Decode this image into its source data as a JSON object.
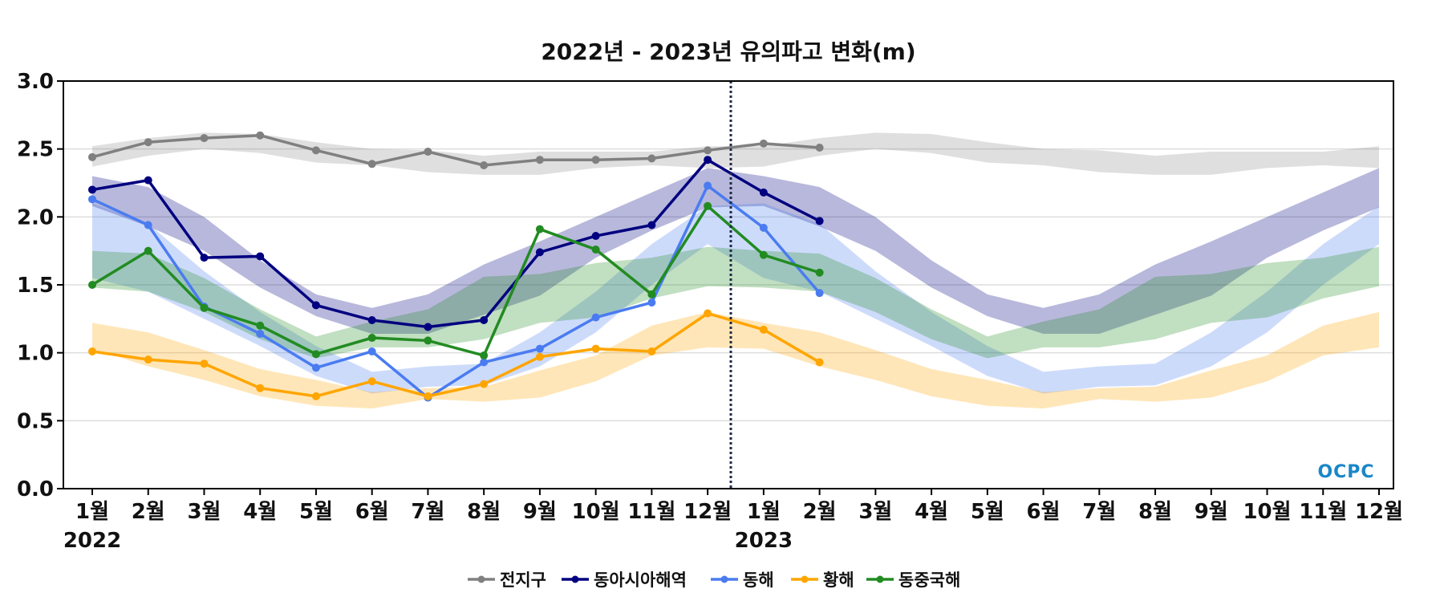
{
  "chart_data": {
    "type": "line",
    "title": "2022년 - 2023년 유의파고 변화(m)",
    "ylim": [
      0,
      3.0
    ],
    "yticks": [
      "0.0",
      "0.5",
      "1.0",
      "1.5",
      "2.0",
      "2.5",
      "3.0"
    ],
    "xtick_labels": [
      "1월",
      "2월",
      "3월",
      "4월",
      "5월",
      "6월",
      "7월",
      "8월",
      "9월",
      "10월",
      "11월",
      "12월",
      "1월",
      "2월",
      "3월",
      "4월",
      "5월",
      "6월",
      "7월",
      "8월",
      "9월",
      "10월",
      "11월",
      "12월"
    ],
    "year_labels": [
      "2022",
      "2023"
    ],
    "grid": true,
    "legend_position": "bottom",
    "divider": "between 2022-12 and 2023-01 (dotted)",
    "logo": "OCPC",
    "series": [
      {
        "name": "전지구",
        "color": "#808080",
        "values": [
          2.44,
          2.55,
          2.58,
          2.6,
          2.49,
          2.39,
          2.48,
          2.38,
          2.42,
          2.42,
          2.43,
          2.49,
          2.54,
          2.51
        ],
        "band": [
          [
            2.37,
            2.52
          ],
          [
            2.45,
            2.58
          ],
          [
            2.5,
            2.62
          ],
          [
            2.47,
            2.61
          ],
          [
            2.4,
            2.55
          ],
          [
            2.38,
            2.5
          ],
          [
            2.33,
            2.49
          ],
          [
            2.31,
            2.45
          ],
          [
            2.31,
            2.48
          ],
          [
            2.36,
            2.48
          ],
          [
            2.38,
            2.48
          ],
          [
            2.36,
            2.52
          ]
        ]
      },
      {
        "name": "동아시아해역",
        "color": "#000080",
        "values": [
          2.2,
          2.27,
          1.7,
          1.71,
          1.35,
          1.24,
          1.19,
          1.24,
          1.74,
          1.86,
          1.94,
          2.42,
          2.18,
          1.97
        ],
        "band": [
          [
            2.08,
            2.3
          ],
          [
            1.93,
            2.22
          ],
          [
            1.75,
            2.0
          ],
          [
            1.48,
            1.68
          ],
          [
            1.27,
            1.43
          ],
          [
            1.14,
            1.33
          ],
          [
            1.14,
            1.43
          ],
          [
            1.28,
            1.65
          ],
          [
            1.42,
            1.82
          ],
          [
            1.7,
            2.0
          ],
          [
            1.9,
            2.18
          ],
          [
            2.07,
            2.36
          ]
        ]
      },
      {
        "name": "동해",
        "color": "#4a7cf0",
        "values": [
          2.13,
          1.94,
          1.34,
          1.14,
          0.89,
          1.01,
          0.67,
          0.93,
          1.03,
          1.26,
          1.37,
          2.23,
          1.92,
          1.44
        ],
        "band": [
          [
            1.55,
            2.1
          ],
          [
            1.45,
            1.95
          ],
          [
            1.25,
            1.6
          ],
          [
            1.05,
            1.3
          ],
          [
            0.83,
            1.05
          ],
          [
            0.7,
            0.86
          ],
          [
            0.75,
            0.9
          ],
          [
            0.76,
            0.92
          ],
          [
            0.9,
            1.15
          ],
          [
            1.15,
            1.45
          ],
          [
            1.5,
            1.8
          ],
          [
            1.8,
            2.08
          ]
        ]
      },
      {
        "name": "황해",
        "color": "#ffa500",
        "values": [
          1.01,
          0.95,
          0.92,
          0.74,
          0.68,
          0.79,
          0.68,
          0.77,
          0.97,
          1.03,
          1.01,
          1.29,
          1.17,
          0.93
        ],
        "band": [
          [
            1.03,
            1.22
          ],
          [
            0.9,
            1.15
          ],
          [
            0.8,
            1.02
          ],
          [
            0.68,
            0.88
          ],
          [
            0.61,
            0.8
          ],
          [
            0.59,
            0.71
          ],
          [
            0.66,
            0.74
          ],
          [
            0.64,
            0.75
          ],
          [
            0.67,
            0.87
          ],
          [
            0.79,
            0.98
          ],
          [
            0.98,
            1.2
          ],
          [
            1.04,
            1.3
          ]
        ]
      },
      {
        "name": "동중국해",
        "color": "#228b22",
        "values": [
          1.5,
          1.75,
          1.33,
          1.2,
          0.99,
          1.11,
          1.09,
          0.98,
          1.91,
          1.76,
          1.43,
          2.08,
          1.72,
          1.59
        ],
        "band": [
          [
            1.48,
            1.75
          ],
          [
            1.45,
            1.73
          ],
          [
            1.3,
            1.55
          ],
          [
            1.1,
            1.32
          ],
          [
            0.96,
            1.12
          ],
          [
            1.04,
            1.23
          ],
          [
            1.04,
            1.32
          ],
          [
            1.1,
            1.56
          ],
          [
            1.22,
            1.58
          ],
          [
            1.26,
            1.66
          ],
          [
            1.4,
            1.7
          ],
          [
            1.49,
            1.78
          ]
        ]
      }
    ]
  }
}
